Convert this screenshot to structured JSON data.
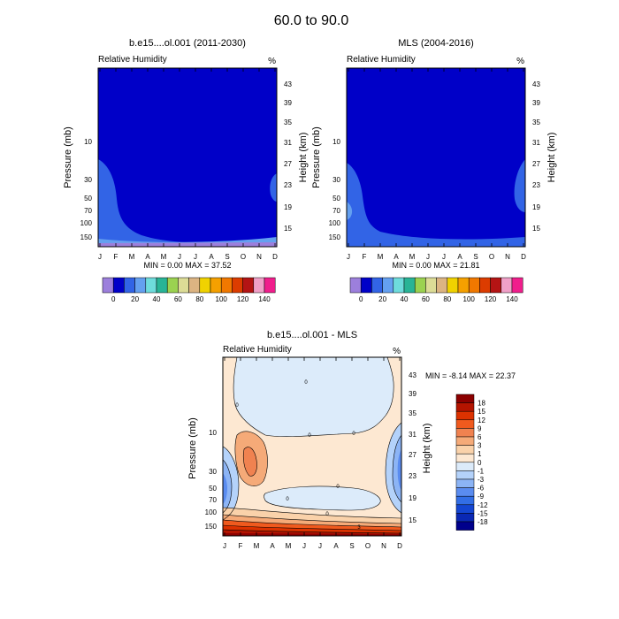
{
  "figure": {
    "title": "60.0 to  90.0"
  },
  "chart_data": [
    {
      "type": "heatmap",
      "title": "b.e15....ol.001 (2011-2030)",
      "subtitle_left": "Relative Humidity",
      "subtitle_right": "%",
      "xlabel": "",
      "ylabel": "Pressure (mb)",
      "ylabel_right": "Height (km)",
      "x_ticks": [
        "J",
        "F",
        "M",
        "A",
        "M",
        "J",
        "J",
        "A",
        "S",
        "O",
        "N",
        "D"
      ],
      "y_ticks": [
        "10",
        "30",
        "50",
        "70",
        "100",
        "150"
      ],
      "y_right_ticks": [
        "43",
        "39",
        "35",
        "31",
        "27",
        "23",
        "19",
        "15"
      ],
      "stats": "MIN =  0.00  MAX = 37.52",
      "colorbar": {
        "labels": [
          "0",
          "20",
          "40",
          "60",
          "80",
          "100",
          "120",
          "140"
        ],
        "colors": [
          "#9c7fdc",
          "#0000c8",
          "#3264e6",
          "#64a0f0",
          "#6edcdc",
          "#28b496",
          "#9bd250",
          "#dcdc96",
          "#dcb482",
          "#f0d200",
          "#f5a000",
          "#f07800",
          "#dc3c00",
          "#b41414",
          "#f0a0c8",
          "#f01e8c"
        ]
      },
      "fill_level": "0-20 (#0000c8)",
      "rh_max": 37.52,
      "rh_min": 0.0
    },
    {
      "type": "heatmap",
      "title": "MLS (2004-2016)",
      "subtitle_left": "Relative Humidity",
      "subtitle_right": "%",
      "xlabel": "",
      "ylabel": "Pressure (mb)",
      "ylabel_right": "Height (km)",
      "x_ticks": [
        "J",
        "F",
        "M",
        "A",
        "M",
        "J",
        "J",
        "A",
        "S",
        "O",
        "N",
        "D"
      ],
      "y_ticks": [
        "10",
        "30",
        "50",
        "70",
        "100",
        "150"
      ],
      "y_right_ticks": [
        "43",
        "39",
        "35",
        "31",
        "27",
        "23",
        "19",
        "15"
      ],
      "stats": "MIN =  0.00  MAX = 21.81",
      "colorbar": {
        "labels": [
          "0",
          "20",
          "40",
          "60",
          "80",
          "100",
          "120",
          "140"
        ],
        "colors": [
          "#9c7fdc",
          "#0000c8",
          "#3264e6",
          "#64a0f0",
          "#6edcdc",
          "#28b496",
          "#9bd250",
          "#dcdc96",
          "#dcb482",
          "#f0d200",
          "#f5a000",
          "#f07800",
          "#dc3c00",
          "#b41414",
          "#f0a0c8",
          "#f01e8c"
        ]
      },
      "rh_max": 21.81,
      "rh_min": 0.0
    },
    {
      "type": "heatmap",
      "title": "b.e15....ol.001 - MLS",
      "subtitle_left": "Relative Humidity",
      "subtitle_right": "%",
      "xlabel": "",
      "ylabel": "Pressure (mb)",
      "ylabel_right": "Height (km)",
      "x_ticks": [
        "J",
        "F",
        "M",
        "A",
        "M",
        "J",
        "J",
        "A",
        "S",
        "O",
        "N",
        "D"
      ],
      "y_ticks": [
        "10",
        "30",
        "50",
        "70",
        "100",
        "150"
      ],
      "y_right_ticks": [
        "43",
        "39",
        "35",
        "31",
        "27",
        "23",
        "19",
        "15"
      ],
      "stats": "MIN =  -8.14  MAX =  22.37",
      "colorbar": {
        "labels": [
          "18",
          "15",
          "12",
          "9",
          "6",
          "3",
          "1",
          "0",
          "-1",
          "-3",
          "-6",
          "-9",
          "-12",
          "-15",
          "-18"
        ],
        "colors": [
          "#8c0000",
          "#b41400",
          "#dc3200",
          "#f05a1e",
          "#f08250",
          "#f5aa78",
          "#fad2aa",
          "#fde8d2",
          "#dcebfa",
          "#b4d2fa",
          "#8cb4f5",
          "#5a8cf0",
          "#326ee6",
          "#1446d2",
          "#0a28b4",
          "#00008c"
        ]
      },
      "contour_labels": [
        "0",
        "0",
        "0",
        "0",
        "0",
        "3",
        "0",
        "0"
      ],
      "diff_max": 22.37,
      "diff_min": -8.14
    }
  ]
}
